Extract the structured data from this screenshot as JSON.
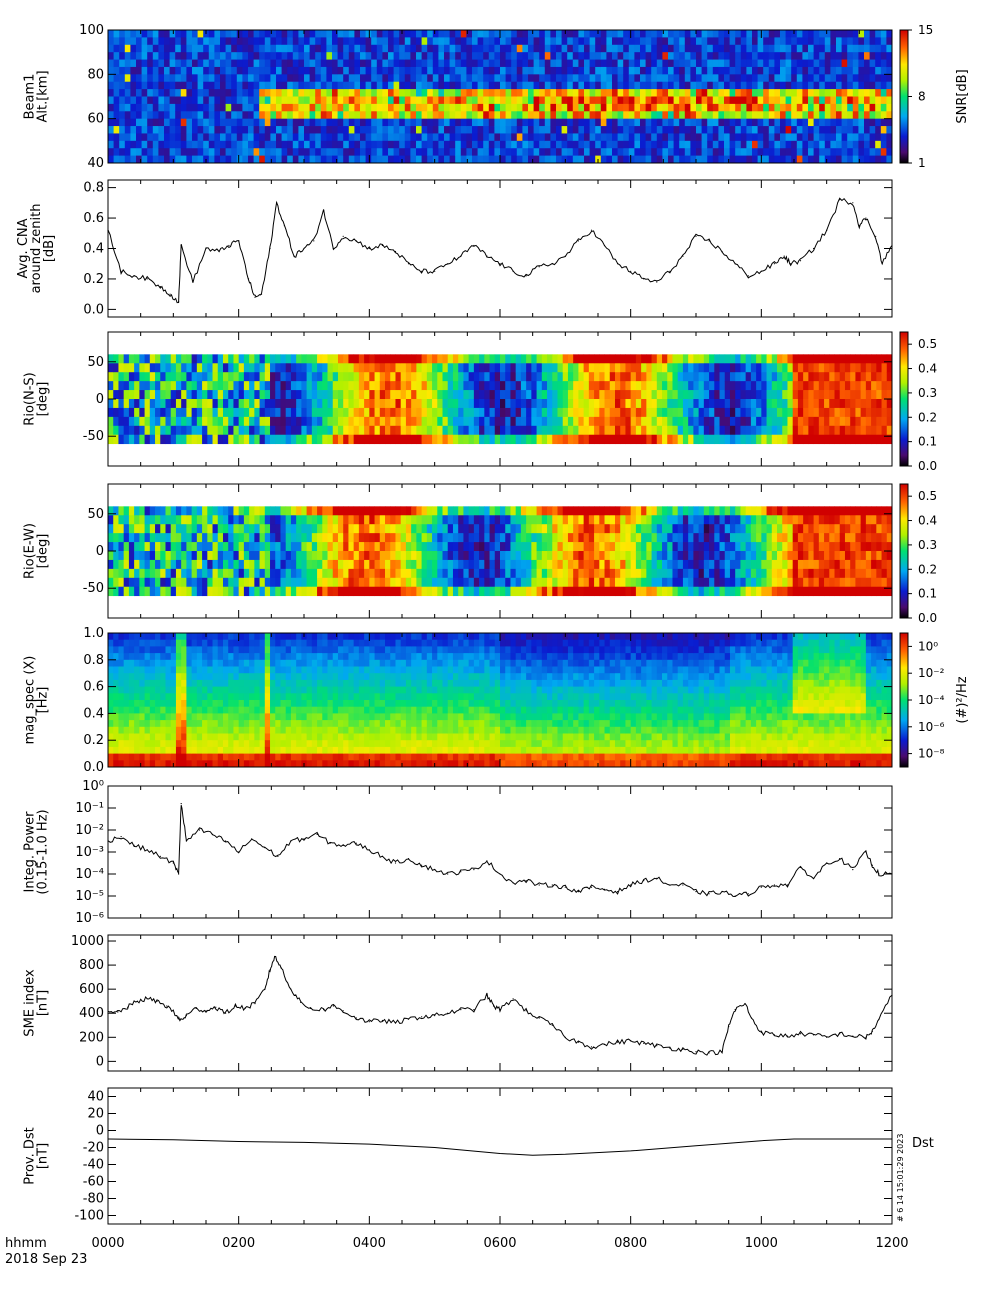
{
  "figure": {
    "time_axis": {
      "label_line1": "hhmm",
      "label_line2": "2018 Sep 23",
      "range": [
        0,
        1200
      ],
      "ticks": [
        "0000",
        "0200",
        "0400",
        "0600",
        "0800",
        "1000",
        "1200"
      ]
    },
    "footer_stamp": "# 6 14 15:01:29 2023"
  },
  "chart_data": [
    {
      "id": "beam1",
      "type": "heatmap",
      "ylabel": [
        "Beam1",
        "Alt.[km]"
      ],
      "ylim": [
        40,
        100
      ],
      "yticks": [
        "40",
        "60",
        "80",
        "100"
      ],
      "colorbar": {
        "label": "SNR[dB]",
        "ticks": [
          "1",
          "8",
          "15"
        ],
        "range": [
          1,
          15
        ]
      },
      "features": {
        "scattering_layer_km": [
          62,
          72
        ],
        "layer_start_hhmm": "0230",
        "background": "noise 1-6 dB",
        "layer_peak_snr_db": 15
      }
    },
    {
      "id": "cna",
      "type": "line",
      "ylabel": [
        "Avg. CNA",
        "around zenith",
        "[dB]"
      ],
      "ylim": [
        -0.05,
        0.85
      ],
      "yticks": [
        "0.0",
        "0.2",
        "0.4",
        "0.6",
        "0.8"
      ],
      "x": [
        0,
        20,
        40,
        60,
        80,
        95,
        108,
        112,
        130,
        150,
        170,
        185,
        200,
        215,
        225,
        235,
        248,
        258,
        270,
        285,
        300,
        315,
        330,
        345,
        360,
        380,
        400,
        420,
        440,
        460,
        480,
        500,
        520,
        540,
        560,
        580,
        600,
        620,
        640,
        660,
        680,
        700,
        720,
        740,
        760,
        780,
        800,
        820,
        840,
        860,
        880,
        900,
        920,
        940,
        960,
        980,
        1000,
        1020,
        1035,
        1045,
        1060,
        1080,
        1100,
        1120,
        1140,
        1150,
        1160,
        1175,
        1185,
        1200
      ],
      "values": [
        0.52,
        0.25,
        0.22,
        0.2,
        0.15,
        0.1,
        0.05,
        0.42,
        0.18,
        0.4,
        0.38,
        0.42,
        0.45,
        0.2,
        0.08,
        0.1,
        0.4,
        0.7,
        0.55,
        0.35,
        0.4,
        0.45,
        0.65,
        0.4,
        0.48,
        0.45,
        0.4,
        0.42,
        0.38,
        0.3,
        0.25,
        0.25,
        0.3,
        0.35,
        0.42,
        0.35,
        0.3,
        0.25,
        0.22,
        0.28,
        0.3,
        0.35,
        0.45,
        0.52,
        0.42,
        0.3,
        0.25,
        0.2,
        0.18,
        0.25,
        0.35,
        0.48,
        0.45,
        0.38,
        0.3,
        0.22,
        0.25,
        0.3,
        0.35,
        0.3,
        0.32,
        0.4,
        0.52,
        0.72,
        0.7,
        0.55,
        0.6,
        0.48,
        0.3,
        0.42
      ],
      "xlim": [
        0,
        1200
      ]
    },
    {
      "id": "riometer_ns",
      "type": "heatmap",
      "ylabel": [
        "Rio(N-S)",
        "[deg]"
      ],
      "ylim": [
        -90,
        90
      ],
      "data_ylim": [
        -60,
        60
      ],
      "yticks": [
        "-50",
        "0",
        "50"
      ],
      "colorbar": {
        "ticks": [
          "0.0",
          "0.1",
          "0.2",
          "0.3",
          "0.4",
          "0.5"
        ],
        "range": [
          0,
          0.55
        ]
      },
      "features": {
        "low_absorption_hhmm": [
          0,
          250
        ],
        "high_absorption_hhmm": [
          1050,
          1200
        ]
      }
    },
    {
      "id": "riometer_ew",
      "type": "heatmap",
      "ylabel": [
        "Rio(E-W)",
        "[deg]"
      ],
      "ylim": [
        -90,
        90
      ],
      "data_ylim": [
        -60,
        60
      ],
      "yticks": [
        "-50",
        "0",
        "50"
      ],
      "colorbar": {
        "ticks": [
          "0.0",
          "0.1",
          "0.2",
          "0.3",
          "0.4",
          "0.5"
        ],
        "range": [
          0,
          0.55
        ]
      },
      "features": {
        "low_absorption_hhmm": [
          0,
          250
        ],
        "high_absorption_hhmm": [
          1050,
          1200
        ]
      }
    },
    {
      "id": "mag_spec",
      "type": "heatmap",
      "ylabel": [
        "mag_spec (X)",
        "[Hz]"
      ],
      "ylim": [
        0,
        1.0
      ],
      "yticks": [
        "0.0",
        "0.2",
        "0.4",
        "0.6",
        "0.8",
        "1.0"
      ],
      "colorbar": {
        "label": "(#)²/Hz",
        "ticks": [
          "10⁻⁸",
          "10⁻⁶",
          "10⁻⁴",
          "10⁻²",
          "10⁰"
        ],
        "log_range": [
          -9,
          1
        ]
      },
      "features": {
        "broadband_spikes_hhmm": [
          112,
          250
        ],
        "oscillation_band_hhmm": [
          1050,
          1160
        ]
      }
    },
    {
      "id": "integ_power",
      "type": "line",
      "ylabel": [
        "Integ. Power",
        "(0.15-1.0 Hz)"
      ],
      "yscale": "log",
      "ylim_log10": [
        -6,
        0
      ],
      "yticks": [
        "10⁻⁶",
        "10⁻⁵",
        "10⁻⁴",
        "10⁻³",
        "10⁻²",
        "10⁻¹",
        "10⁰"
      ],
      "x": [
        0,
        20,
        40,
        60,
        80,
        100,
        108,
        112,
        120,
        140,
        160,
        180,
        200,
        220,
        240,
        260,
        280,
        300,
        320,
        340,
        360,
        380,
        400,
        420,
        440,
        460,
        480,
        500,
        520,
        540,
        560,
        580,
        600,
        620,
        640,
        660,
        680,
        700,
        720,
        740,
        760,
        780,
        800,
        820,
        840,
        860,
        880,
        900,
        920,
        940,
        960,
        980,
        1000,
        1020,
        1040,
        1060,
        1080,
        1100,
        1120,
        1140,
        1160,
        1170,
        1180,
        1200
      ],
      "values": [
        -2.5,
        -2.3,
        -2.7,
        -2.9,
        -3.2,
        -3.5,
        -4.0,
        -0.8,
        -2.5,
        -2.0,
        -2.2,
        -2.5,
        -3.0,
        -2.4,
        -2.8,
        -3.2,
        -2.5,
        -2.4,
        -2.2,
        -2.6,
        -2.7,
        -2.6,
        -2.9,
        -3.2,
        -3.5,
        -3.3,
        -3.6,
        -3.8,
        -4.0,
        -3.9,
        -3.8,
        -3.4,
        -4.0,
        -4.4,
        -4.3,
        -4.5,
        -4.5,
        -4.6,
        -4.8,
        -4.6,
        -4.7,
        -4.8,
        -4.5,
        -4.3,
        -4.2,
        -4.5,
        -4.5,
        -4.8,
        -4.9,
        -4.8,
        -5.0,
        -4.9,
        -4.6,
        -4.5,
        -4.5,
        -3.7,
        -4.2,
        -3.5,
        -3.3,
        -3.8,
        -3.0,
        -3.6,
        -4.0,
        -4.0
      ],
      "xlim": [
        0,
        1200
      ]
    },
    {
      "id": "sme",
      "type": "line",
      "ylabel": [
        "SME index",
        "[nT]"
      ],
      "ylim": [
        -80,
        1050
      ],
      "yticks": [
        "0",
        "200",
        "400",
        "600",
        "800",
        "1000"
      ],
      "x": [
        0,
        15,
        30,
        45,
        60,
        75,
        90,
        105,
        110,
        120,
        135,
        150,
        165,
        180,
        195,
        210,
        225,
        240,
        248,
        255,
        265,
        280,
        295,
        310,
        330,
        345,
        360,
        380,
        400,
        420,
        440,
        460,
        480,
        500,
        520,
        540,
        560,
        580,
        590,
        600,
        620,
        640,
        660,
        680,
        700,
        720,
        740,
        760,
        780,
        800,
        820,
        840,
        860,
        880,
        900,
        920,
        940,
        950,
        960,
        975,
        985,
        1000,
        1020,
        1040,
        1060,
        1080,
        1100,
        1120,
        1140,
        1160,
        1170,
        1180,
        1200
      ],
      "values": [
        400,
        410,
        450,
        500,
        520,
        500,
        460,
        380,
        340,
        380,
        440,
        420,
        450,
        400,
        460,
        440,
        480,
        600,
        760,
        870,
        780,
        600,
        490,
        440,
        430,
        460,
        420,
        360,
        330,
        340,
        320,
        350,
        370,
        380,
        400,
        430,
        430,
        550,
        460,
        430,
        520,
        420,
        360,
        300,
        200,
        160,
        120,
        140,
        160,
        170,
        150,
        130,
        110,
        100,
        80,
        70,
        80,
        290,
        430,
        480,
        360,
        240,
        220,
        210,
        230,
        220,
        200,
        230,
        210,
        200,
        250,
        350,
        550
      ],
      "xlim": [
        0,
        1200
      ]
    },
    {
      "id": "dst",
      "type": "line",
      "ylabel": [
        "Prov. Dst",
        "[nT]"
      ],
      "series_label": "Dst",
      "ylim": [
        -110,
        50
      ],
      "yticks": [
        "-100",
        "-80",
        "-60",
        "-40",
        "-20",
        "0",
        "20",
        "40"
      ],
      "x": [
        0,
        100,
        200,
        300,
        400,
        500,
        600,
        650,
        700,
        800,
        900,
        950,
        1000,
        1050,
        1100,
        1200
      ],
      "values": [
        -10,
        -11,
        -13,
        -14,
        -16,
        -20,
        -27,
        -29,
        -28,
        -24,
        -18,
        -15,
        -12,
        -10,
        -10,
        -10
      ],
      "xlim": [
        0,
        1200
      ]
    }
  ]
}
